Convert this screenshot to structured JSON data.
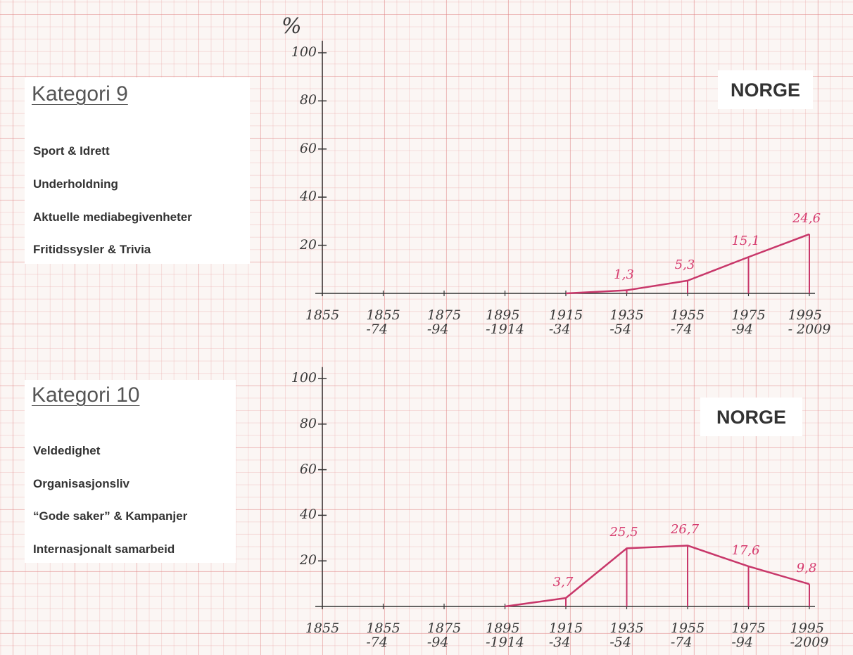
{
  "chart_data": [
    {
      "type": "line",
      "title": "Kategori 9",
      "items": [
        "Sport & Idrett",
        "Underholdning",
        "Aktuelle mediabegivenheter",
        "Fritidssysler & Trivia"
      ],
      "annotation": "NORGE",
      "y_label": "%",
      "categories": [
        "1855",
        "1855\n-74",
        "1875\n-94",
        "1895\n-1914",
        "1915\n-34",
        "1935\n-54",
        "1955\n-74",
        "1975\n-94",
        "1995\n- 2009"
      ],
      "values": [
        null,
        null,
        null,
        null,
        0,
        1.3,
        5.3,
        15.1,
        24.6
      ],
      "value_labels": [
        null,
        null,
        null,
        null,
        null,
        "1,3",
        "5,3",
        "15,1",
        "24,6"
      ],
      "color": "#c8376a",
      "ylim": [
        0,
        105
      ],
      "yticks": [
        20,
        40,
        60,
        80,
        100
      ]
    },
    {
      "type": "line",
      "title": "Kategori 10",
      "items": [
        "Veldedighet",
        "Organisasjonsliv",
        "“Gode saker” & Kampanjer",
        "Internasjonalt samarbeid"
      ],
      "annotation": "NORGE",
      "categories": [
        "1855",
        "1855\n-74",
        "1875\n-94",
        "1895\n-1914",
        "1915\n-34",
        "1935\n-54",
        "1955\n-74",
        "1975\n-94",
        "1995\n-2009"
      ],
      "values": [
        null,
        null,
        null,
        0,
        3.7,
        25.5,
        26.7,
        17.6,
        9.8
      ],
      "value_labels": [
        null,
        null,
        null,
        null,
        "3,7",
        "25,5",
        "26,7",
        "17,6",
        "9,8"
      ],
      "color": "#c8376a",
      "ylim": [
        0,
        105
      ],
      "yticks": [
        20,
        40,
        60,
        80,
        100
      ]
    }
  ]
}
